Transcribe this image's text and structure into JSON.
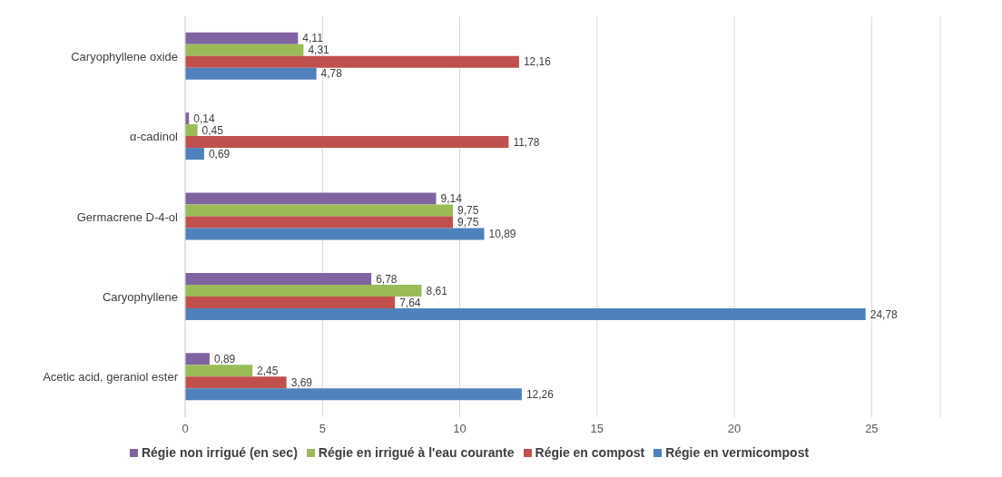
{
  "chart_data": {
    "type": "bar",
    "orientation": "horizontal",
    "categories": [
      "Caryophyllene oxide",
      "α-cadinol",
      "Germacrene D-4-ol",
      "Caryophyllene",
      "Acetic acid, geraniol ester"
    ],
    "series": [
      {
        "name": "Régie non irrigué (en sec)",
        "color": "#8064a2",
        "values": [
          4.11,
          0.14,
          9.14,
          6.78,
          0.89
        ],
        "value_labels": [
          "4,11",
          "0,14",
          "9,14",
          "6,78",
          "0,89"
        ]
      },
      {
        "name": "Régie en irrigué à l'eau courante",
        "color": "#9bbb59",
        "values": [
          4.31,
          0.45,
          9.75,
          8.61,
          2.45
        ],
        "value_labels": [
          "4,31",
          "0,45",
          "9,75",
          "8,61",
          "2,45"
        ]
      },
      {
        "name": "Régie en compost",
        "color": "#c0504d",
        "values": [
          12.16,
          11.78,
          9.75,
          7.64,
          3.69
        ],
        "value_labels": [
          "12,16",
          "11,78",
          "9,75",
          "7,64",
          "3,69"
        ]
      },
      {
        "name": "Régie en vermicompost",
        "color": "#4f81bd",
        "values": [
          4.78,
          0.69,
          10.89,
          24.78,
          12.26
        ],
        "value_labels": [
          "4,78",
          "0,69",
          "10,89",
          "24,78",
          "12,26"
        ]
      }
    ],
    "xlim": [
      0,
      27.5
    ],
    "xticks": [
      0,
      5,
      10,
      15,
      20,
      25
    ],
    "grid": "x",
    "legend": "bottom"
  }
}
